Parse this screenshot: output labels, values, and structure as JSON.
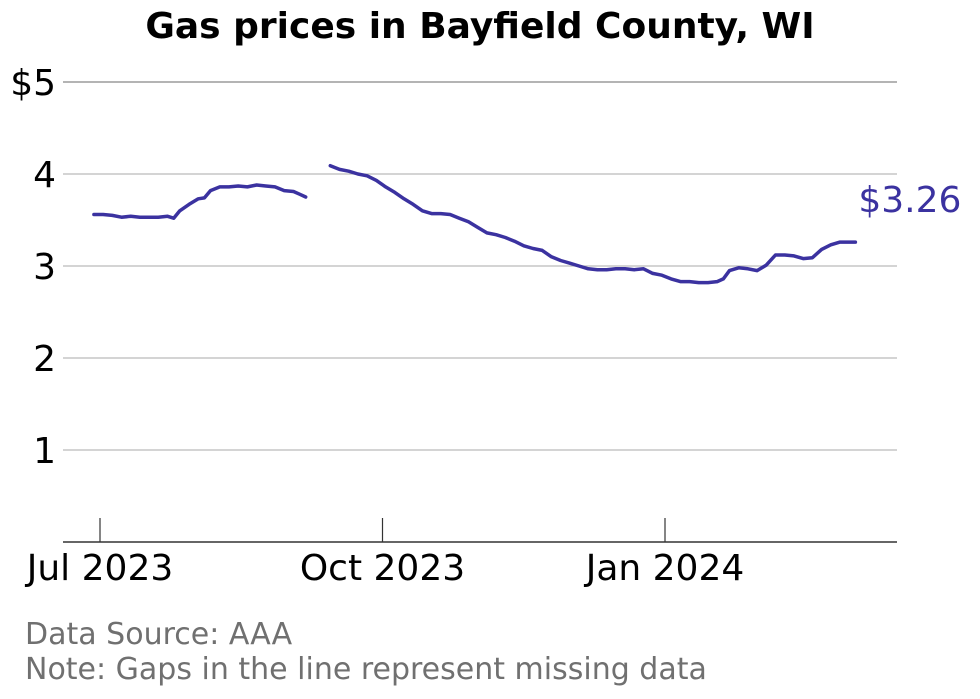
{
  "chart_data": {
    "type": "line",
    "title": "Gas prices in Bayfield County, WI",
    "xlabel": "",
    "ylabel": "",
    "ylim": [
      0,
      5
    ],
    "y_ticks": [
      1,
      2,
      3,
      4,
      5
    ],
    "y_tick_labels": [
      "1",
      "2",
      "3",
      "4",
      "$5"
    ],
    "x_ticks": [
      "2023-07-01",
      "2023-10-01",
      "2024-01-01"
    ],
    "x_tick_labels": [
      "Jul 2023",
      "Oct 2023",
      "Jan 2024"
    ],
    "grid": "horizontal",
    "series_color": "#3b32a0",
    "end_label": "$3.26",
    "segments": [
      [
        [
          "2023-06-29",
          3.56
        ],
        [
          "2023-07-02",
          3.56
        ],
        [
          "2023-07-05",
          3.55
        ],
        [
          "2023-07-08",
          3.53
        ],
        [
          "2023-07-11",
          3.54
        ],
        [
          "2023-07-14",
          3.53
        ],
        [
          "2023-07-17",
          3.53
        ],
        [
          "2023-07-20",
          3.53
        ],
        [
          "2023-07-23",
          3.54
        ],
        [
          "2023-07-25",
          3.52
        ],
        [
          "2023-07-27",
          3.6
        ],
        [
          "2023-07-30",
          3.67
        ],
        [
          "2023-08-02",
          3.73
        ],
        [
          "2023-08-04",
          3.74
        ],
        [
          "2023-08-06",
          3.82
        ],
        [
          "2023-08-09",
          3.86
        ],
        [
          "2023-08-12",
          3.86
        ],
        [
          "2023-08-15",
          3.87
        ],
        [
          "2023-08-18",
          3.86
        ],
        [
          "2023-08-21",
          3.88
        ],
        [
          "2023-08-24",
          3.87
        ],
        [
          "2023-08-27",
          3.86
        ],
        [
          "2023-08-30",
          3.82
        ],
        [
          "2023-09-02",
          3.81
        ],
        [
          "2023-09-04",
          3.78
        ],
        [
          "2023-09-06",
          3.75
        ]
      ],
      [
        [
          "2023-09-14",
          4.09
        ],
        [
          "2023-09-17",
          4.05
        ],
        [
          "2023-09-20",
          4.03
        ],
        [
          "2023-09-23",
          4.0
        ],
        [
          "2023-09-26",
          3.98
        ],
        [
          "2023-09-29",
          3.93
        ],
        [
          "2023-10-02",
          3.86
        ],
        [
          "2023-10-05",
          3.8
        ],
        [
          "2023-10-08",
          3.73
        ],
        [
          "2023-10-11",
          3.67
        ],
        [
          "2023-10-14",
          3.6
        ],
        [
          "2023-10-17",
          3.57
        ],
        [
          "2023-10-20",
          3.57
        ],
        [
          "2023-10-23",
          3.56
        ],
        [
          "2023-10-26",
          3.52
        ],
        [
          "2023-10-29",
          3.48
        ],
        [
          "2023-11-01",
          3.42
        ],
        [
          "2023-11-04",
          3.36
        ],
        [
          "2023-11-07",
          3.34
        ],
        [
          "2023-11-10",
          3.31
        ],
        [
          "2023-11-13",
          3.27
        ],
        [
          "2023-11-16",
          3.22
        ],
        [
          "2023-11-19",
          3.19
        ],
        [
          "2023-11-22",
          3.17
        ],
        [
          "2023-11-25",
          3.1
        ],
        [
          "2023-11-28",
          3.06
        ],
        [
          "2023-12-01",
          3.03
        ],
        [
          "2023-12-04",
          3.0
        ],
        [
          "2023-12-07",
          2.97
        ],
        [
          "2023-12-10",
          2.96
        ],
        [
          "2023-12-13",
          2.96
        ],
        [
          "2023-12-16",
          2.97
        ],
        [
          "2023-12-19",
          2.97
        ],
        [
          "2023-12-22",
          2.96
        ],
        [
          "2023-12-25",
          2.97
        ],
        [
          "2023-12-28",
          2.92
        ],
        [
          "2023-12-31",
          2.9
        ],
        [
          "2024-01-03",
          2.86
        ],
        [
          "2024-01-06",
          2.83
        ],
        [
          "2024-01-09",
          2.83
        ],
        [
          "2024-01-12",
          2.82
        ],
        [
          "2024-01-15",
          2.82
        ],
        [
          "2024-01-18",
          2.83
        ],
        [
          "2024-01-20",
          2.86
        ],
        [
          "2024-01-22",
          2.95
        ],
        [
          "2024-01-25",
          2.98
        ],
        [
          "2024-01-28",
          2.97
        ],
        [
          "2024-01-31",
          2.95
        ],
        [
          "2024-02-03",
          3.01
        ],
        [
          "2024-02-06",
          3.12
        ],
        [
          "2024-02-09",
          3.12
        ],
        [
          "2024-02-12",
          3.11
        ],
        [
          "2024-02-15",
          3.08
        ],
        [
          "2024-02-18",
          3.09
        ],
        [
          "2024-02-21",
          3.18
        ],
        [
          "2024-02-24",
          3.23
        ],
        [
          "2024-02-27",
          3.26
        ],
        [
          "2024-03-01",
          3.26
        ],
        [
          "2024-03-03",
          3.26
        ]
      ]
    ]
  },
  "footer": {
    "source": "Data Source: AAA",
    "note": "Note: Gaps in the line represent missing data"
  }
}
